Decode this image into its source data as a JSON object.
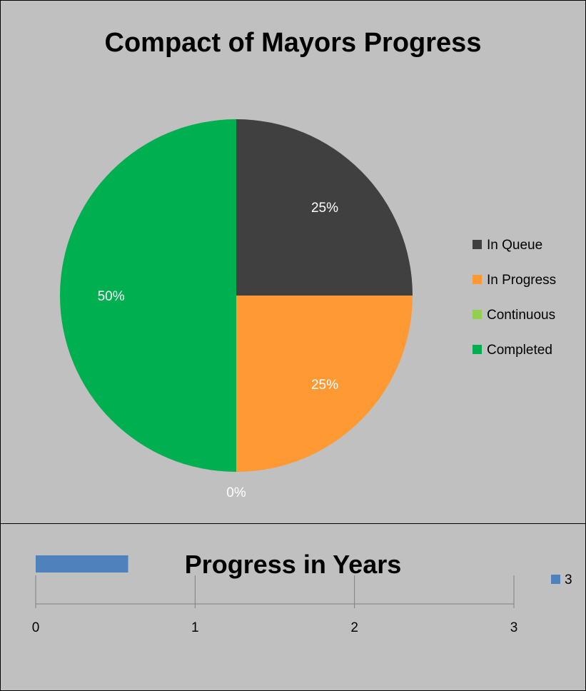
{
  "chart_data": [
    {
      "type": "pie",
      "title": "Compact of Mayors Progress",
      "categories": [
        "In Queue",
        "In Progress",
        "Continuous",
        "Completed"
      ],
      "values": [
        25,
        25,
        0,
        50
      ],
      "labels": [
        "25%",
        "25%",
        "0%",
        "50%"
      ],
      "colors": [
        "#404040",
        "#ff9933",
        "#92d050",
        "#00b050"
      ],
      "legend": "right",
      "label_color": "#ffffff"
    },
    {
      "type": "bar",
      "orientation": "horizontal",
      "title": "Progress in Years",
      "categories": [
        ""
      ],
      "series": [
        {
          "name": "3",
          "values": [
            0.58
          ]
        }
      ],
      "colors": [
        "#4f81bd"
      ],
      "xlim": [
        0,
        3
      ],
      "xticks": [
        "0",
        "1",
        "2",
        "3"
      ],
      "grid": true,
      "legend": "right"
    }
  ]
}
